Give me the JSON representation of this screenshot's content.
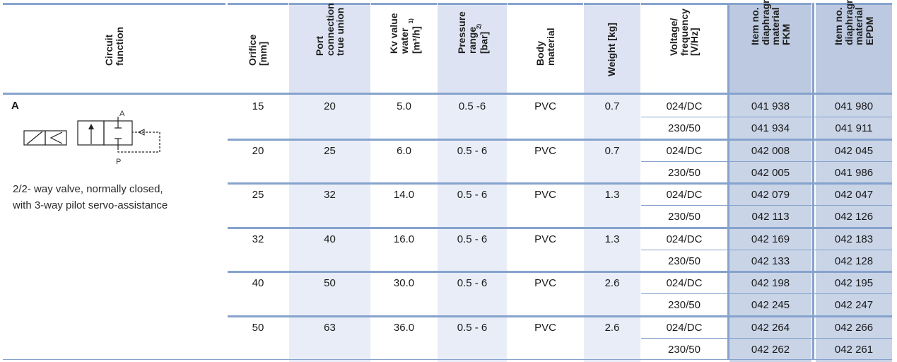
{
  "table": {
    "headers": [
      {
        "key": "circuit",
        "label": "Circuit\nfunction",
        "sup": ""
      },
      {
        "key": "orifice",
        "label": "Orifice\n[mm]",
        "sup": ""
      },
      {
        "key": "port",
        "label": "Port\nconnection\ntrue union",
        "sup": ""
      },
      {
        "key": "kv",
        "label": "Kv value\nwater\n[m³/h]",
        "sup": "1)"
      },
      {
        "key": "pressure",
        "label": "Pressure\nrange\n[bar]",
        "sup": "2)"
      },
      {
        "key": "body",
        "label": "Body\nmaterial",
        "sup": ""
      },
      {
        "key": "weight",
        "label": "Weight [kg]",
        "sup": ""
      },
      {
        "key": "voltage",
        "label": "Voltage/\nfrequency\n[V/Hz]",
        "sup": ""
      },
      {
        "key": "fkm",
        "label": "Item no.\ndiaphragm\nmaterial\nFKM",
        "sup": ""
      },
      {
        "key": "epdm",
        "label": "Item no.\ndiaphragm\nmaterial\nEPDM",
        "sup": ""
      }
    ],
    "circuit": {
      "letter": "A",
      "description_line1": "2/2- way valve, normally closed,",
      "description_line2": "with 3-way pilot servo-assistance",
      "port_a_label": "A",
      "port_p_label": "P"
    },
    "groups": [
      {
        "orifice": "15",
        "port": "20",
        "kv": "5.0",
        "pressure": "0.5  -6",
        "body": "PVC",
        "weight": "0.7",
        "rows": [
          {
            "voltage": "024/DC",
            "fkm": "041 938",
            "epdm": "041 980"
          },
          {
            "voltage": "230/50",
            "fkm": "041 934",
            "epdm": "041 911"
          }
        ]
      },
      {
        "orifice": "20",
        "port": "25",
        "kv": "6.0",
        "pressure": "0.5 - 6",
        "body": "PVC",
        "weight": "0.7",
        "rows": [
          {
            "voltage": "024/DC",
            "fkm": "042 008",
            "epdm": "042 045"
          },
          {
            "voltage": "230/50",
            "fkm": "042 005",
            "epdm": "041 986"
          }
        ]
      },
      {
        "orifice": "25",
        "port": "32",
        "kv": "14.0",
        "pressure": "0.5 - 6",
        "body": "PVC",
        "weight": "1.3",
        "rows": [
          {
            "voltage": "024/DC",
            "fkm": "042 079",
            "epdm": "042 047"
          },
          {
            "voltage": "230/50",
            "fkm": "042 113",
            "epdm": "042 126"
          }
        ]
      },
      {
        "orifice": "32",
        "port": "40",
        "kv": "16.0",
        "pressure": "0.5 - 6",
        "body": "PVC",
        "weight": "1.3",
        "rows": [
          {
            "voltage": "024/DC",
            "fkm": "042 169",
            "epdm": "042 183"
          },
          {
            "voltage": "230/50",
            "fkm": "042 133",
            "epdm": "042 128"
          }
        ]
      },
      {
        "orifice": "40",
        "port": "50",
        "kv": "30.0",
        "pressure": "0.5 - 6",
        "body": "PVC",
        "weight": "2.6",
        "rows": [
          {
            "voltage": "024/DC",
            "fkm": "042 198",
            "epdm": "042 195"
          },
          {
            "voltage": "230/50",
            "fkm": "042 245",
            "epdm": "042 247"
          }
        ]
      },
      {
        "orifice": "50",
        "port": "63",
        "kv": "36.0",
        "pressure": "0.5 - 6",
        "body": "PVC",
        "weight": "2.6",
        "rows": [
          {
            "voltage": "024/DC",
            "fkm": "042 264",
            "epdm": "042 266"
          },
          {
            "voltage": "230/50",
            "fkm": "042 262",
            "epdm": "042 261"
          }
        ]
      }
    ]
  },
  "colors": {
    "rule": "#86a3cd",
    "shade": "#e9edf7",
    "header_shade": "#dde3f2",
    "dark": "#c9d4e7",
    "header_dark": "#bcc9e0"
  }
}
